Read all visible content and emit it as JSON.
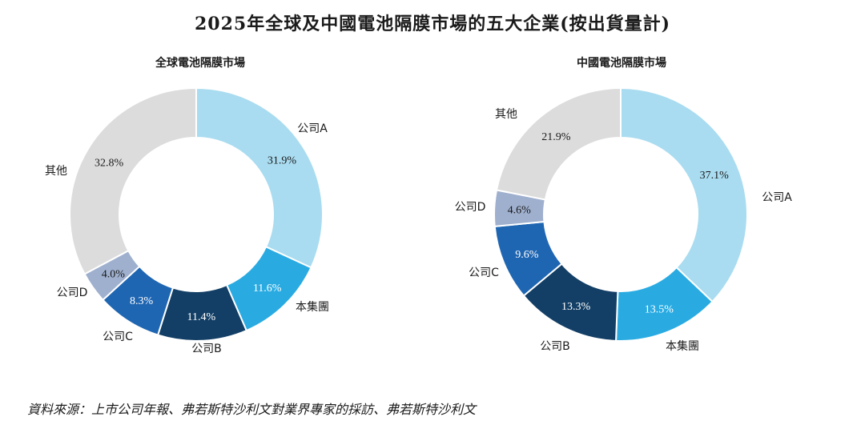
{
  "title": "2025年全球及中國電池隔膜市場的五大企業(按出貨量計)",
  "source": "資料來源：上市公司年報、弗若斯特沙利文對業界專家的採訪、弗若斯特沙利文",
  "chart_data": [
    {
      "type": "pie",
      "title": "全球電池隔膜市場",
      "donut": true,
      "categories": [
        "公司A",
        "本集團",
        "公司B",
        "公司C",
        "公司D",
        "其他"
      ],
      "values": [
        31.9,
        11.6,
        11.4,
        8.3,
        4.0,
        32.8
      ],
      "labels": [
        "31.9%",
        "11.6%",
        "11.4%",
        "8.3%",
        "4.0%",
        "32.8%"
      ],
      "colors": [
        "#a9dcf0",
        "#29abe2",
        "#133f66",
        "#1f66b2",
        "#9fb0cf",
        "#dcdcdc"
      ]
    },
    {
      "type": "pie",
      "title": "中國電池隔膜市場",
      "donut": true,
      "categories": [
        "公司A",
        "本集團",
        "公司B",
        "公司C",
        "公司D",
        "其他"
      ],
      "values": [
        37.1,
        13.5,
        13.3,
        9.6,
        4.6,
        21.9
      ],
      "labels": [
        "37.1%",
        "13.5%",
        "13.3%",
        "9.6%",
        "4.6%",
        "21.9%"
      ],
      "colors": [
        "#a9dcf0",
        "#29abe2",
        "#133f66",
        "#1f66b2",
        "#9fb0cf",
        "#dcdcdc"
      ]
    }
  ]
}
